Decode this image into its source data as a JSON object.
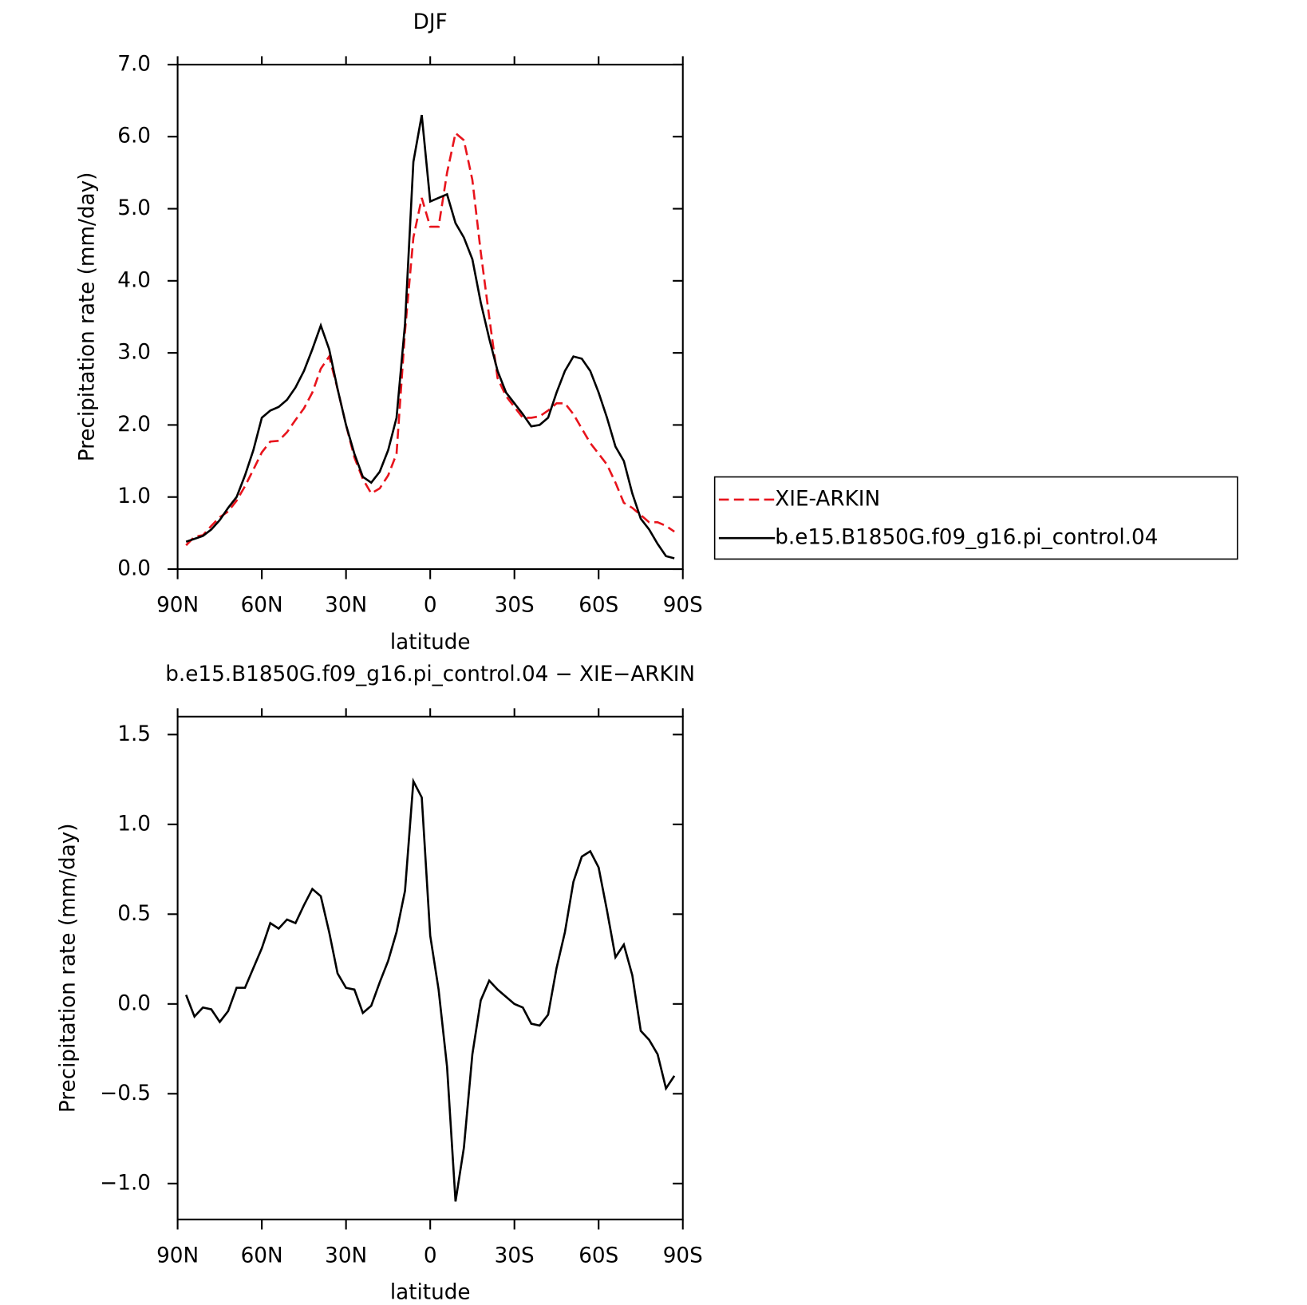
{
  "chart_data": [
    {
      "type": "line",
      "title": "DJF",
      "xlabel": "latitude",
      "ylabel": "Precipitation rate (mm/day)",
      "x": [
        87,
        84,
        81,
        78,
        75,
        72,
        69,
        66,
        63,
        60,
        57,
        54,
        51,
        48,
        45,
        42,
        39,
        36,
        33,
        30,
        27,
        24,
        21,
        18,
        15,
        12,
        9,
        6,
        3,
        0,
        -3,
        -6,
        -9,
        -12,
        -15,
        -18,
        -21,
        -24,
        -27,
        -30,
        -33,
        -36,
        -39,
        -42,
        -45,
        -48,
        -51,
        -54,
        -57,
        -60,
        -63,
        -66,
        -69,
        -72,
        -75,
        -78,
        -81,
        -84,
        -87
      ],
      "series": [
        {
          "name": "XIE-ARKIN",
          "color": "#e8141c",
          "linestyle": "dashed",
          "values": [
            0.33,
            0.45,
            0.47,
            0.6,
            0.72,
            0.8,
            0.95,
            1.15,
            1.38,
            1.62,
            1.77,
            1.78,
            1.9,
            2.07,
            2.23,
            2.45,
            2.78,
            2.95,
            2.5,
            2.0,
            1.55,
            1.25,
            1.05,
            1.12,
            1.3,
            1.6,
            3.3,
            4.6,
            5.15,
            4.75,
            4.75,
            5.5,
            6.05,
            5.95,
            5.4,
            4.4,
            3.5,
            2.65,
            2.4,
            2.25,
            2.1,
            2.1,
            2.12,
            2.2,
            2.3,
            2.3,
            2.15,
            1.95,
            1.75,
            1.6,
            1.45,
            1.2,
            0.92,
            0.85,
            0.75,
            0.65,
            0.65,
            0.6,
            0.52
          ]
        },
        {
          "name": "b.e15.B1850G.f09_g16.pi_control.04",
          "color": "#000000",
          "linestyle": "solid",
          "values": [
            0.38,
            0.42,
            0.46,
            0.55,
            0.68,
            0.85,
            1.0,
            1.3,
            1.65,
            2.1,
            2.2,
            2.25,
            2.35,
            2.52,
            2.75,
            3.05,
            3.38,
            3.05,
            2.5,
            2.0,
            1.6,
            1.28,
            1.2,
            1.35,
            1.65,
            2.1,
            3.4,
            5.65,
            6.3,
            5.1,
            5.15,
            5.2,
            4.8,
            4.6,
            4.3,
            3.7,
            3.2,
            2.75,
            2.45,
            2.3,
            2.15,
            1.98,
            2.0,
            2.1,
            2.45,
            2.75,
            2.95,
            2.92,
            2.75,
            2.45,
            2.1,
            1.7,
            1.5,
            1.05,
            0.7,
            0.55,
            0.35,
            0.18,
            0.15
          ]
        }
      ],
      "xlim": [
        90,
        -90
      ],
      "xticks": [
        {
          "value": 90,
          "label": "90N"
        },
        {
          "value": 60,
          "label": "60N"
        },
        {
          "value": 30,
          "label": "30N"
        },
        0,
        {
          "value": -30,
          "label": "30S"
        },
        {
          "value": -60,
          "label": "60S"
        },
        {
          "value": -90,
          "label": "90S"
        }
      ],
      "ylim": [
        0,
        7
      ],
      "yticks": [
        {
          "value": 0,
          "label": "0.0"
        },
        {
          "value": 1,
          "label": "1.0"
        },
        {
          "value": 2,
          "label": "2.0"
        },
        {
          "value": 3,
          "label": "3.0"
        },
        {
          "value": 4,
          "label": "4.0"
        },
        {
          "value": 5,
          "label": "5.0"
        },
        {
          "value": 6,
          "label": "6.0"
        },
        {
          "value": 7,
          "label": "7.0"
        }
      ],
      "legend": "right"
    },
    {
      "type": "line",
      "title": "b.e15.B1850G.f09_g16.pi_control.04 − XIE−ARKIN",
      "xlabel": "latitude",
      "ylabel": "Precipitation rate (mm/day)",
      "x": [
        87,
        84,
        81,
        78,
        75,
        72,
        69,
        66,
        63,
        60,
        57,
        54,
        51,
        48,
        45,
        42,
        39,
        36,
        33,
        30,
        27,
        24,
        21,
        18,
        15,
        12,
        9,
        6,
        3,
        0,
        -3,
        -6,
        -9,
        -12,
        -15,
        -18,
        -21,
        -24,
        -27,
        -30,
        -33,
        -36,
        -39,
        -42,
        -45,
        -48,
        -51,
        -54,
        -57,
        -60,
        -63,
        -66,
        -69,
        -72,
        -75,
        -78,
        -81,
        -84,
        -87
      ],
      "color": "#000000",
      "values": [
        0.05,
        -0.07,
        -0.02,
        -0.03,
        -0.1,
        -0.04,
        0.09,
        0.09,
        0.2,
        0.31,
        0.45,
        0.42,
        0.47,
        0.45,
        0.55,
        0.64,
        0.6,
        0.4,
        0.17,
        0.09,
        0.08,
        -0.05,
        -0.01,
        0.12,
        0.24,
        0.4,
        0.63,
        1.24,
        1.15,
        0.38,
        0.08,
        -0.35,
        -1.1,
        -0.8,
        -0.28,
        0.02,
        0.13,
        0.08,
        0.04,
        0.0,
        -0.02,
        -0.11,
        -0.12,
        -0.06,
        0.2,
        0.4,
        0.68,
        0.82,
        0.85,
        0.76,
        0.52,
        0.26,
        0.33,
        0.16,
        -0.15,
        -0.2,
        -0.28,
        -0.47,
        -0.4
      ],
      "xlim": [
        90,
        -90
      ],
      "xticks": [
        {
          "value": 90,
          "label": "90N"
        },
        {
          "value": 60,
          "label": "60N"
        },
        {
          "value": 30,
          "label": "30N"
        },
        0,
        {
          "value": -30,
          "label": "30S"
        },
        {
          "value": -60,
          "label": "60S"
        },
        {
          "value": -90,
          "label": "90S"
        }
      ],
      "ylim": [
        -1.2,
        1.6
      ],
      "yticks": [
        {
          "value": -1,
          "label": "−1.0"
        },
        {
          "value": -0.5,
          "label": "−0.5"
        },
        {
          "value": 0,
          "label": "0.0"
        },
        {
          "value": 0.5,
          "label": "0.5"
        },
        {
          "value": 1,
          "label": "1.0"
        },
        {
          "value": 1.5,
          "label": "1.5"
        }
      ]
    }
  ]
}
